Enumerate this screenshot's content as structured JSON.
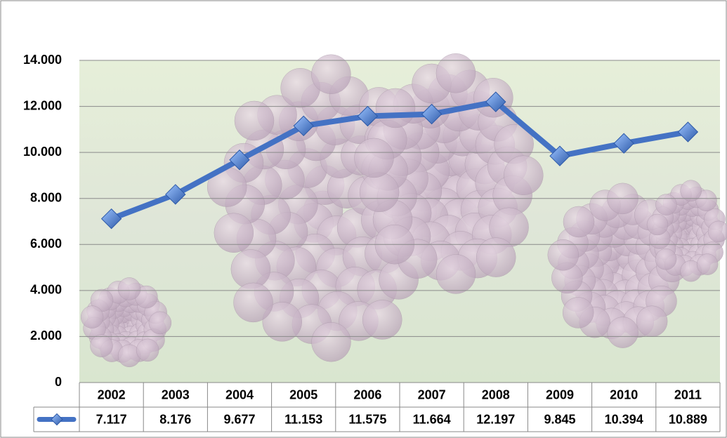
{
  "chart_data": {
    "type": "line",
    "categories": [
      "2002",
      "2003",
      "2004",
      "2005",
      "2006",
      "2007",
      "2008",
      "2009",
      "2010",
      "2011"
    ],
    "series": [
      {
        "color": "#4472c4",
        "values": [
          7117,
          8176,
          9677,
          11153,
          11575,
          11664,
          12197,
          9845,
          10394,
          10889
        ],
        "value_labels": [
          "7.117",
          "8.176",
          "9.677",
          "11.153",
          "11.575",
          "11.664",
          "12.197",
          "9.845",
          "10.394",
          "10.889"
        ]
      }
    ],
    "ylim": [
      0,
      14000
    ],
    "yticks": [
      0,
      {
        "value": 2000,
        "label": "2.000"
      },
      {
        "value": 4000,
        "label": "4.000"
      },
      {
        "value": 6000,
        "label": "6.000"
      },
      {
        "value": 8000,
        "label": "8.000"
      },
      {
        "value": 10000,
        "label": "10.000"
      },
      {
        "value": 12000,
        "label": "12.000"
      },
      {
        "value": 14000,
        "label": "14.000"
      }
    ],
    "grid": true
  }
}
